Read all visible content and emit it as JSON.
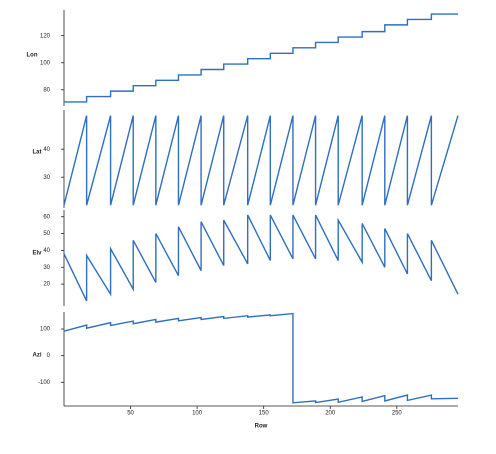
{
  "chart_data": [
    {
      "type": "line",
      "ylabel": "Lon",
      "color": "#2f6fc0",
      "xlim": [
        0,
        296
      ],
      "ylim": [
        68,
        139
      ],
      "yticks": [
        80,
        100,
        120
      ],
      "x": [
        0,
        17,
        17,
        35,
        35,
        52,
        52,
        69,
        69,
        86,
        86,
        103,
        103,
        120,
        120,
        138,
        138,
        155,
        155,
        172,
        172,
        189,
        189,
        206,
        206,
        224,
        224,
        241,
        241,
        258,
        258,
        276,
        276,
        296
      ],
      "values": [
        71,
        71,
        75,
        75,
        79,
        79,
        83,
        83,
        87,
        87,
        91,
        91,
        95,
        95,
        99,
        99,
        103,
        103,
        107,
        107,
        111,
        111,
        115,
        115,
        119,
        119,
        123,
        123,
        128,
        128,
        132,
        132,
        136,
        136
      ]
    },
    {
      "type": "line",
      "ylabel": "Lat",
      "color": "#2f6fc0",
      "xlim": [
        0,
        296
      ],
      "ylim": [
        19,
        54
      ],
      "yticks": [
        30,
        40
      ],
      "x": [
        0,
        17,
        17,
        35,
        35,
        52,
        52,
        69,
        69,
        86,
        86,
        103,
        103,
        120,
        120,
        138,
        138,
        155,
        155,
        172,
        172,
        189,
        189,
        206,
        206,
        224,
        224,
        241,
        241,
        258,
        258,
        276,
        276,
        296
      ],
      "values": [
        20,
        52,
        20,
        52,
        20,
        52,
        20,
        52,
        20,
        52,
        20,
        52,
        20,
        52,
        20,
        52,
        20,
        52,
        20,
        52,
        20,
        52,
        20,
        52,
        20,
        52,
        20,
        52,
        20,
        52,
        20,
        52,
        20,
        52
      ]
    },
    {
      "type": "line",
      "ylabel": "Elv",
      "color": "#2f6fc0",
      "xlim": [
        0,
        296
      ],
      "ylim": [
        7,
        64
      ],
      "yticks": [
        20,
        30,
        40,
        50,
        60
      ],
      "x": [
        0,
        17,
        17,
        35,
        35,
        52,
        52,
        69,
        69,
        86,
        86,
        103,
        103,
        120,
        120,
        138,
        138,
        155,
        155,
        172,
        172,
        189,
        189,
        206,
        206,
        224,
        224,
        241,
        241,
        258,
        258,
        276,
        276,
        296
      ],
      "values": [
        38,
        10,
        37,
        14,
        41,
        17,
        46,
        21,
        50,
        25,
        54,
        28,
        57,
        31,
        58,
        32,
        61,
        34,
        61,
        35,
        61,
        35,
        61,
        34,
        58,
        33,
        56,
        30,
        53,
        26,
        50,
        22,
        46,
        14
      ]
    },
    {
      "type": "line",
      "ylabel": "Azi",
      "xlabel": "Row",
      "color": "#2f6fc0",
      "xlim": [
        0,
        296
      ],
      "ylim": [
        -189,
        164
      ],
      "yticks": [
        -100,
        0,
        100
      ],
      "xticks": [
        50,
        100,
        150,
        200,
        250
      ],
      "x": [
        0,
        17,
        17,
        35,
        35,
        52,
        52,
        69,
        69,
        86,
        86,
        103,
        103,
        120,
        120,
        138,
        138,
        155,
        155,
        172,
        172,
        189,
        189,
        206,
        206,
        224,
        224,
        241,
        241,
        258,
        258,
        276,
        276,
        296
      ],
      "values": [
        92,
        115,
        103,
        124,
        113,
        130,
        120,
        136,
        126,
        140,
        131,
        143,
        136,
        147,
        140,
        150,
        145,
        153,
        150,
        158,
        -177,
        -170,
        -176,
        -163,
        -175,
        -155,
        -172,
        -150,
        -170,
        -148,
        -168,
        -148,
        -162,
        -160
      ]
    }
  ]
}
